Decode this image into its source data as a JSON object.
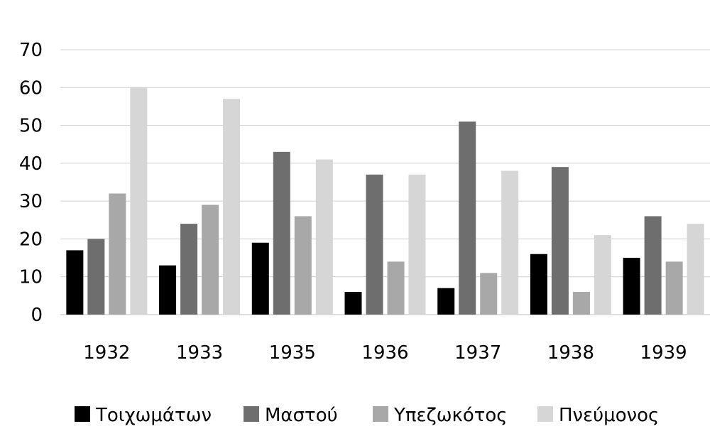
{
  "chart_data": {
    "type": "bar",
    "categories": [
      "1932",
      "1933",
      "1935",
      "1936",
      "1937",
      "1938",
      "1939"
    ],
    "series": [
      {
        "name": "Τοιχωμάτων",
        "color": "#000000",
        "values": [
          17,
          13,
          19,
          6,
          7,
          16,
          15
        ]
      },
      {
        "name": "Μαστού",
        "color": "#6e6e6e",
        "values": [
          20,
          24,
          43,
          37,
          51,
          39,
          26
        ]
      },
      {
        "name": "Υπεζωκότος",
        "color": "#a8a8a8",
        "values": [
          32,
          29,
          26,
          14,
          11,
          6,
          14
        ]
      },
      {
        "name": "Πνεύμονος",
        "color": "#d6d6d6",
        "values": [
          60,
          57,
          41,
          37,
          38,
          21,
          24
        ]
      }
    ],
    "ylim": [
      0,
      70
    ],
    "yticks": [
      0,
      10,
      20,
      30,
      40,
      50,
      60,
      70
    ],
    "grid": true,
    "legend_position": "bottom"
  }
}
